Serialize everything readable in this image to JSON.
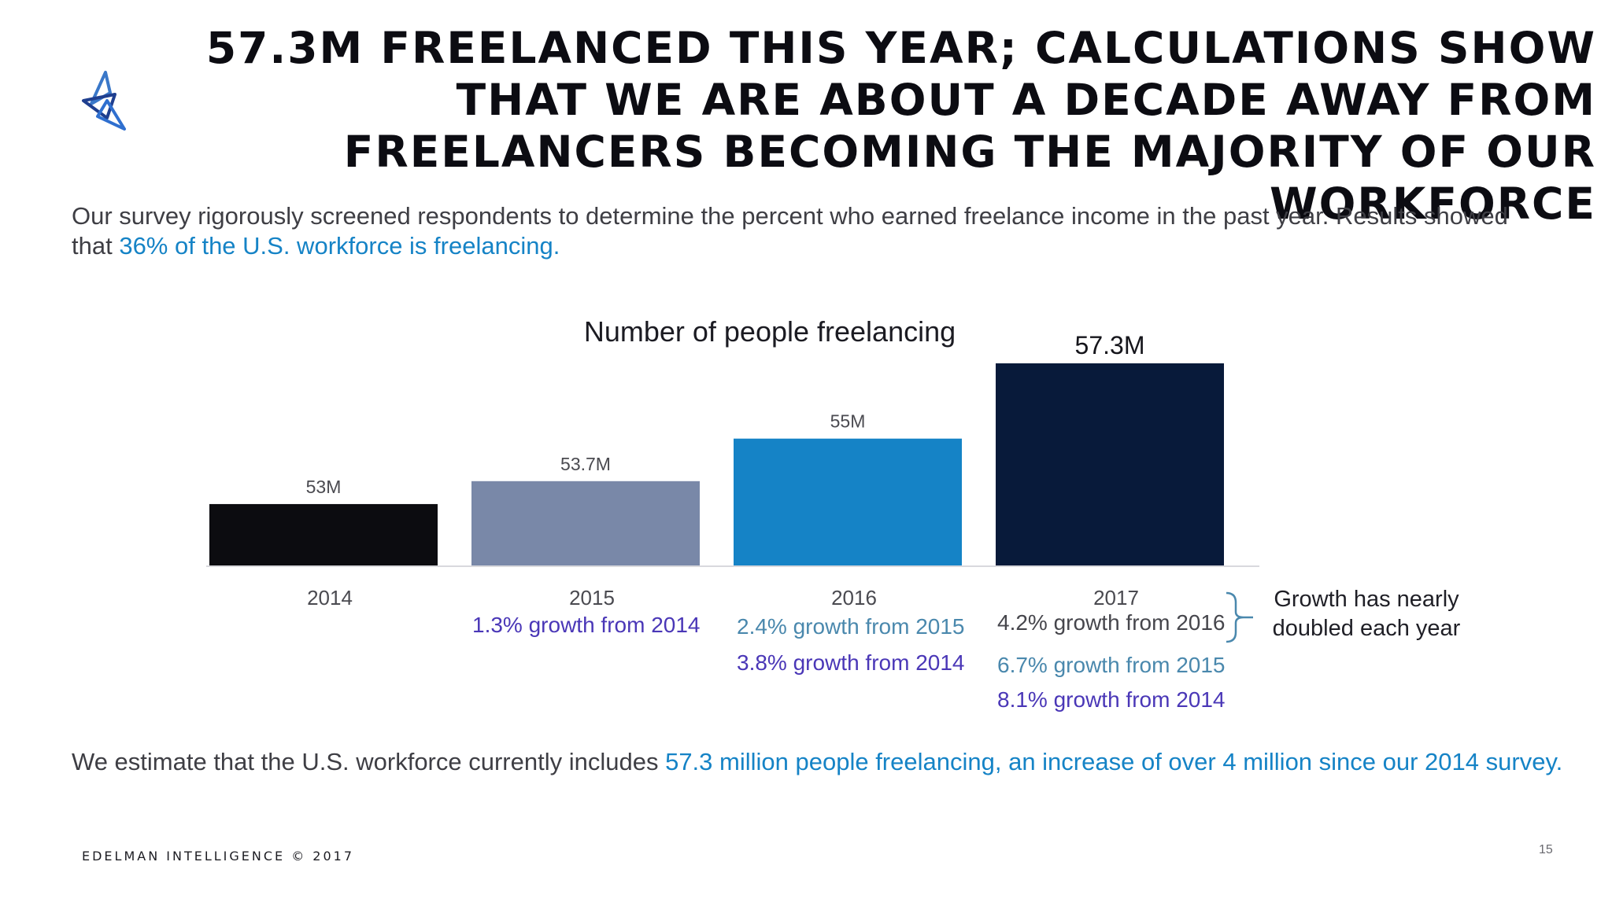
{
  "title": "57.3M FREELANCED THIS YEAR; CALCULATIONS SHOW THAT WE ARE ABOUT A DECADE AWAY FROM FREELANCERS BECOMING THE MAJORITY OF OUR WORKFORCE",
  "intro": {
    "text": "Our survey rigorously screened respondents to determine the percent who earned freelance income in the past year. Results showed that ",
    "highlight": "36% of the U.S. workforce is freelancing."
  },
  "chart_data": {
    "type": "bar",
    "title": "Number of people freelancing",
    "categories": [
      "2014",
      "2015",
      "2016",
      "2017"
    ],
    "values": [
      53,
      53.7,
      55,
      57.3
    ],
    "value_labels": [
      "53M",
      "53.7M",
      "55M",
      "57.3M"
    ],
    "bar_colors": [
      "#0c0c10",
      "#7988a8",
      "#1583c6",
      "#081a3a"
    ],
    "ylim": [
      51.1,
      57.3
    ],
    "grid": false,
    "legend": "none"
  },
  "growth_notes": {
    "2015": [
      "1.3% growth from 2014"
    ],
    "2016": [
      "2.4% growth from 2015",
      "3.8% growth from 2014"
    ],
    "2017": [
      "4.2% growth from 2016",
      "6.7% growth from 2015",
      "8.1% growth from 2014"
    ]
  },
  "callout": "Growth has nearly doubled each year",
  "summary": {
    "text": "We estimate that the U.S. workforce currently includes ",
    "highlight": "57.3 million people freelancing, an increase of over 4 million since our 2014 survey."
  },
  "footer": "EDELMAN INTELLIGENCE © 2017",
  "page_number": "15",
  "colors": {
    "highlight": "#1583c6",
    "purple_text": "#4a37b7",
    "blue_text": "#1c7ab8",
    "steel_text": "#4a88ad"
  },
  "icons": [
    "brand-logo-icon",
    "bracket-icon"
  ]
}
